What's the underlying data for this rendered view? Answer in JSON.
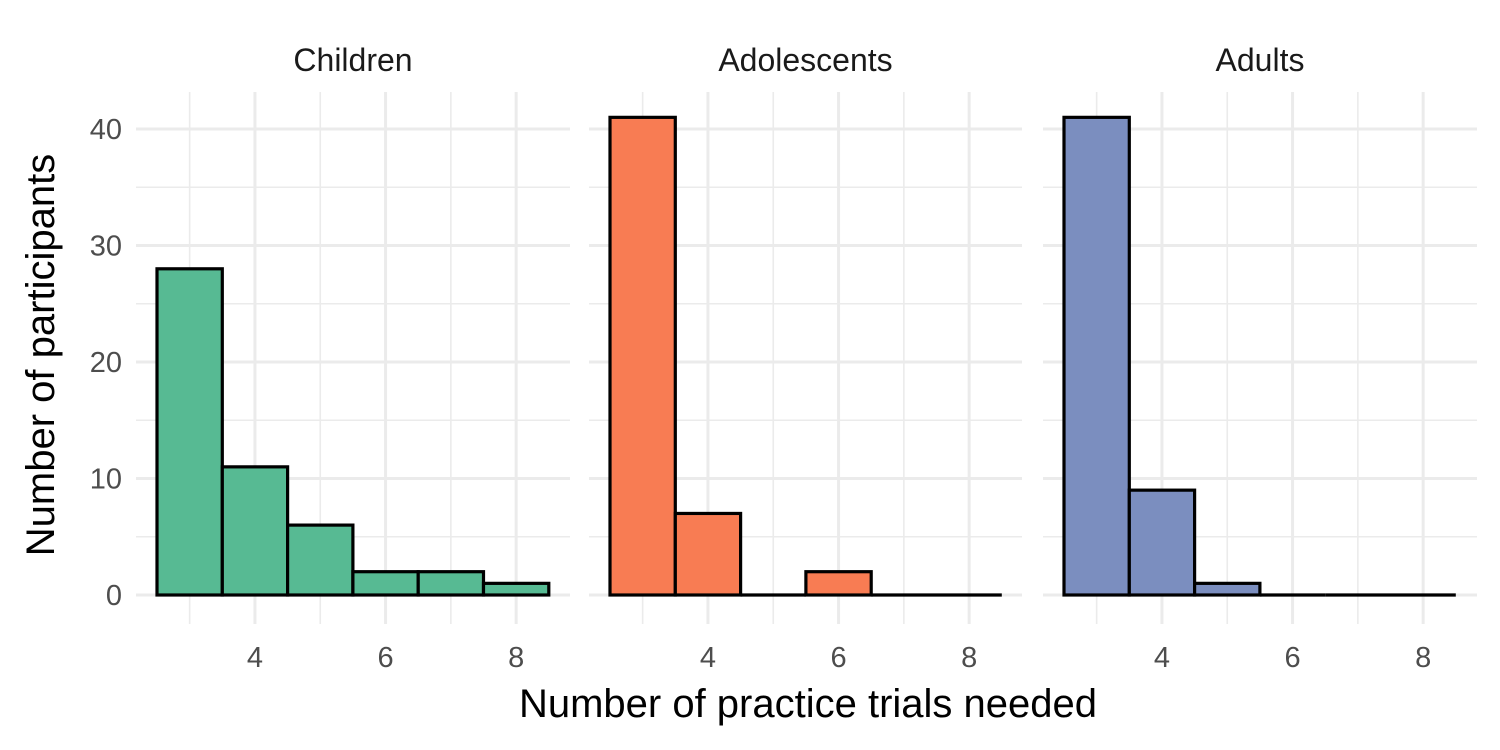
{
  "chart_data": {
    "type": "bar",
    "xlabel": "Number of practice trials needed",
    "ylabel": "Number of participants",
    "xlim": [
      2.5,
      8.5
    ],
    "ylim": [
      0,
      41
    ],
    "x_ticks": [
      4,
      6,
      8
    ],
    "y_ticks": [
      0,
      10,
      20,
      30,
      40
    ],
    "grid": true,
    "bar_outline": "#000000",
    "bins": [
      3,
      4,
      5,
      6,
      7,
      8
    ],
    "facets": [
      {
        "name": "Children",
        "color": "#57BA93",
        "values": [
          28,
          11,
          6,
          2,
          2,
          1
        ]
      },
      {
        "name": "Adolescents",
        "color": "#F87C53",
        "values": [
          41,
          7,
          0,
          2,
          0,
          0
        ]
      },
      {
        "name": "Adults",
        "color": "#7B8EBF",
        "values": [
          41,
          9,
          1,
          0,
          0,
          0
        ]
      }
    ]
  }
}
